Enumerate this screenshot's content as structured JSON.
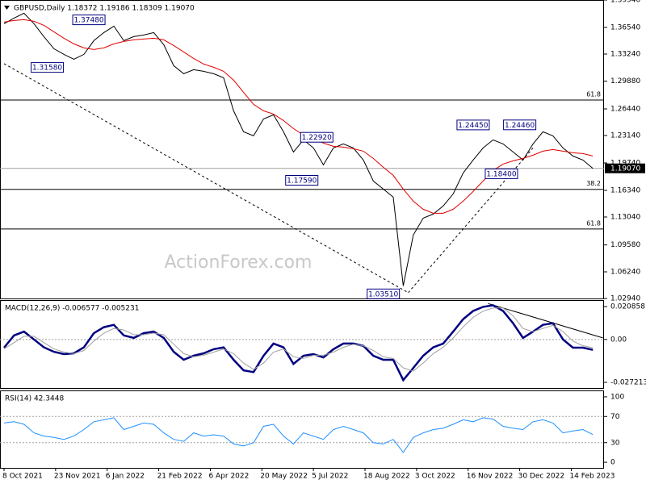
{
  "chart_data": [
    {
      "type": "line",
      "title": "GBPUSD,Daily  1.18372 1.19186 1.18309 1.19070",
      "watermark": "ActionForex.com",
      "x": [
        0,
        6,
        12,
        18,
        24,
        30,
        36,
        42,
        48,
        54,
        60,
        66,
        72,
        78,
        84,
        90,
        96,
        102,
        108,
        114,
        120,
        126,
        132,
        138,
        144,
        150,
        156,
        162,
        168,
        174,
        180,
        186,
        192,
        198,
        204,
        210,
        216,
        222,
        228,
        234,
        240,
        246,
        252,
        258,
        264,
        270,
        276,
        282,
        288,
        294,
        300,
        306,
        312,
        318,
        324,
        330,
        336,
        342,
        348,
        354
      ],
      "xlim": [
        0,
        360
      ],
      "ylim": [
        1.0294,
        1.3994
      ],
      "yticks": [
        {
          "value": 1.3994,
          "label": "1.39940"
        },
        {
          "value": 1.3654,
          "label": "1.36540"
        },
        {
          "value": 1.3324,
          "label": "1.33240"
        },
        {
          "value": 1.2988,
          "label": "1.29880"
        },
        {
          "value": 1.2644,
          "label": "1.26440"
        },
        {
          "value": 1.2314,
          "label": "1.23140"
        },
        {
          "value": 1.1974,
          "label": "1.19740"
        },
        {
          "value": 1.1634,
          "label": "1.16340"
        },
        {
          "value": 1.1304,
          "label": "1.13040"
        },
        {
          "value": 1.0958,
          "label": "1.09580"
        },
        {
          "value": 1.0624,
          "label": "1.06240"
        },
        {
          "value": 1.0294,
          "label": "1.02940"
        }
      ],
      "series": [
        {
          "color": "#000000",
          "values": [
            1.37,
            1.377,
            1.383,
            1.37,
            1.354,
            1.339,
            1.332,
            1.326,
            1.332,
            1.349,
            1.359,
            1.367,
            1.349,
            1.354,
            1.356,
            1.359,
            1.344,
            1.318,
            1.308,
            1.313,
            1.311,
            1.308,
            1.303,
            1.262,
            1.236,
            1.231,
            1.252,
            1.257,
            1.236,
            1.211,
            1.226,
            1.216,
            1.195,
            1.216,
            1.221,
            1.216,
            1.201,
            1.175,
            1.165,
            1.155,
            1.045,
            1.108,
            1.129,
            1.134,
            1.144,
            1.159,
            1.185,
            1.201,
            1.216,
            1.226,
            1.221,
            1.211,
            1.201,
            1.221,
            1.236,
            1.231,
            1.216,
            1.206,
            1.201,
            1.1907
          ]
        },
        {
          "color": "#e00000",
          "values": [
            1.372,
            1.374,
            1.375,
            1.373,
            1.368,
            1.36,
            1.352,
            1.345,
            1.34,
            1.338,
            1.34,
            1.345,
            1.348,
            1.35,
            1.351,
            1.352,
            1.35,
            1.343,
            1.335,
            1.327,
            1.32,
            1.316,
            1.311,
            1.3,
            1.285,
            1.27,
            1.262,
            1.258,
            1.25,
            1.24,
            1.232,
            1.228,
            1.222,
            1.218,
            1.217,
            1.215,
            1.212,
            1.203,
            1.192,
            1.182,
            1.165,
            1.15,
            1.14,
            1.135,
            1.135,
            1.14,
            1.15,
            1.162,
            1.175,
            1.188,
            1.196,
            1.2,
            1.203,
            1.207,
            1.212,
            1.214,
            1.212,
            1.21,
            1.209,
            1.206
          ]
        }
      ],
      "hlines": [
        {
          "value": 1.2754,
          "label": "61.8"
        },
        {
          "value": 1.1647,
          "label": "38.2"
        },
        {
          "value": 1.1155,
          "label": "61.8"
        }
      ],
      "last_price": {
        "value": 1.1907,
        "label": "1.19070"
      },
      "trendlines": [
        {
          "x": [
            0,
            243
          ],
          "y": [
            1.3205,
            1.0366
          ]
        },
        {
          "x": [
            243,
            318
          ],
          "y": [
            1.0366,
            1.216
          ]
        }
      ],
      "annotations": [
        {
          "text": "1.37480",
          "x": 51,
          "y": 1.3748
        },
        {
          "text": "1.31580",
          "x": 26,
          "y": 1.3158
        },
        {
          "text": "1.22920",
          "x": 188,
          "y": 1.2292
        },
        {
          "text": "1.17590",
          "x": 179,
          "y": 1.1759
        },
        {
          "text": "1.03510",
          "x": 228,
          "y": 1.0351
        },
        {
          "text": "1.24450",
          "x": 282,
          "y": 1.2445
        },
        {
          "text": "1.24460",
          "x": 310,
          "y": 1.2446
        },
        {
          "text": "1.18400",
          "x": 299,
          "y": 1.184
        }
      ]
    },
    {
      "type": "line",
      "title": "MACD(12,26,9) -0.006577 -0.005231",
      "x": [
        0,
        6,
        12,
        18,
        24,
        30,
        36,
        42,
        48,
        54,
        60,
        66,
        72,
        78,
        84,
        90,
        96,
        102,
        108,
        114,
        120,
        126,
        132,
        138,
        144,
        150,
        156,
        162,
        168,
        174,
        180,
        186,
        192,
        198,
        204,
        210,
        216,
        222,
        228,
        234,
        240,
        246,
        252,
        258,
        264,
        270,
        276,
        282,
        288,
        294,
        300,
        306,
        312,
        318,
        324,
        330,
        336,
        342,
        348,
        354
      ],
      "xlim": [
        0,
        360
      ],
      "ylim": [
        -0.0308,
        0.025
      ],
      "yticks": [
        0.020858,
        {
          "value": 0,
          "label": "0.00"
        },
        -0.027213
      ],
      "levels": [
        0
      ],
      "series": [
        {
          "color": "#000080",
          "width": 2.5,
          "values": [
            -0.0052,
            0.0026,
            0.005,
            0,
            -0.005,
            -0.0078,
            -0.0093,
            -0.0088,
            -0.005,
            0.004,
            0.0078,
            0.0093,
            0.0026,
            0.001,
            0.004,
            0.005,
            0.001,
            -0.0078,
            -0.0129,
            -0.0103,
            -0.0088,
            -0.0062,
            -0.005,
            -0.0129,
            -0.0196,
            -0.0207,
            -0.0103,
            -0.0026,
            -0.005,
            -0.0155,
            -0.0103,
            -0.0093,
            -0.0114,
            -0.0062,
            -0.0026,
            -0.0026,
            -0.0041,
            -0.0103,
            -0.0129,
            -0.0129,
            -0.0258,
            -0.0181,
            -0.0103,
            -0.005,
            -0.0026,
            0.005,
            0.0129,
            0.0181,
            0.0207,
            0.0217,
            0.0181,
            0.0103,
            0.001,
            0.005,
            0.0093,
            0.0103,
            0,
            -0.0052,
            -0.0052,
            -0.0066
          ]
        },
        {
          "color": "#a0a0a0",
          "width": 1,
          "values": [
            -0.006,
            -0.002,
            0.002,
            0.002,
            -0.002,
            -0.006,
            -0.008,
            -0.009,
            -0.007,
            -0.001,
            0.004,
            0.007,
            0.006,
            0.003,
            0.003,
            0.004,
            0.003,
            -0.003,
            -0.009,
            -0.011,
            -0.01,
            -0.008,
            -0.006,
            -0.009,
            -0.015,
            -0.019,
            -0.015,
            -0.008,
            -0.006,
            -0.011,
            -0.012,
            -0.01,
            -0.01,
            -0.008,
            -0.005,
            -0.003,
            -0.004,
            -0.007,
            -0.011,
            -0.012,
            -0.018,
            -0.02,
            -0.015,
            -0.009,
            -0.005,
            0.001,
            0.008,
            0.014,
            0.018,
            0.02,
            0.02,
            0.015,
            0.007,
            0.005,
            0.007,
            0.009,
            0.005,
            -0.001,
            -0.004,
            -0.0052
          ]
        }
      ],
      "trendlines": [
        {
          "x": [
            291,
            360
          ],
          "y": [
            0.0228,
            0.001
          ]
        }
      ]
    },
    {
      "type": "line",
      "title": "RSI(14) 42.3448",
      "x": [
        0,
        6,
        12,
        18,
        24,
        30,
        36,
        42,
        48,
        54,
        60,
        66,
        72,
        78,
        84,
        90,
        96,
        102,
        108,
        114,
        120,
        126,
        132,
        138,
        144,
        150,
        156,
        162,
        168,
        174,
        180,
        186,
        192,
        198,
        204,
        210,
        216,
        222,
        228,
        234,
        240,
        246,
        252,
        258,
        264,
        270,
        276,
        282,
        288,
        294,
        300,
        306,
        312,
        318,
        324,
        330,
        336,
        342,
        348,
        354
      ],
      "xlim": [
        0,
        360
      ],
      "xticks": [
        {
          "value": 0,
          "label": "8 Oct 2021"
        },
        {
          "value": 31,
          "label": "23 Nov 2021"
        },
        {
          "value": 62,
          "label": "6 Jan 2022"
        },
        {
          "value": 93,
          "label": "21 Feb 2022"
        },
        {
          "value": 124,
          "label": "6 Apr 2022"
        },
        {
          "value": 155,
          "label": "20 May 2022"
        },
        {
          "value": 186,
          "label": "5 Jul 2022"
        },
        {
          "value": 217,
          "label": "18 Aug 2022"
        },
        {
          "value": 248,
          "label": "3 Oct 2022"
        },
        {
          "value": 279,
          "label": "16 Nov 2022"
        },
        {
          "value": 310,
          "label": "30 Dec 2022"
        },
        {
          "value": 341,
          "label": "14 Feb 2023"
        }
      ],
      "ylim": [
        -8.5,
        109.8
      ],
      "yticks": [
        100,
        70,
        30,
        0
      ],
      "levels": [
        70,
        30
      ],
      "series": [
        {
          "color": "#1e90ff",
          "width": 1,
          "values": [
            60,
            62,
            58,
            45,
            40,
            38,
            35,
            40,
            50,
            62,
            65,
            68,
            50,
            55,
            60,
            58,
            45,
            35,
            32,
            45,
            40,
            42,
            40,
            28,
            25,
            30,
            55,
            58,
            40,
            28,
            45,
            40,
            35,
            50,
            55,
            50,
            45,
            30,
            28,
            35,
            15,
            38,
            45,
            50,
            52,
            58,
            65,
            62,
            68,
            66,
            55,
            52,
            50,
            62,
            65,
            60,
            45,
            48,
            50,
            42.3448
          ]
        }
      ]
    }
  ]
}
